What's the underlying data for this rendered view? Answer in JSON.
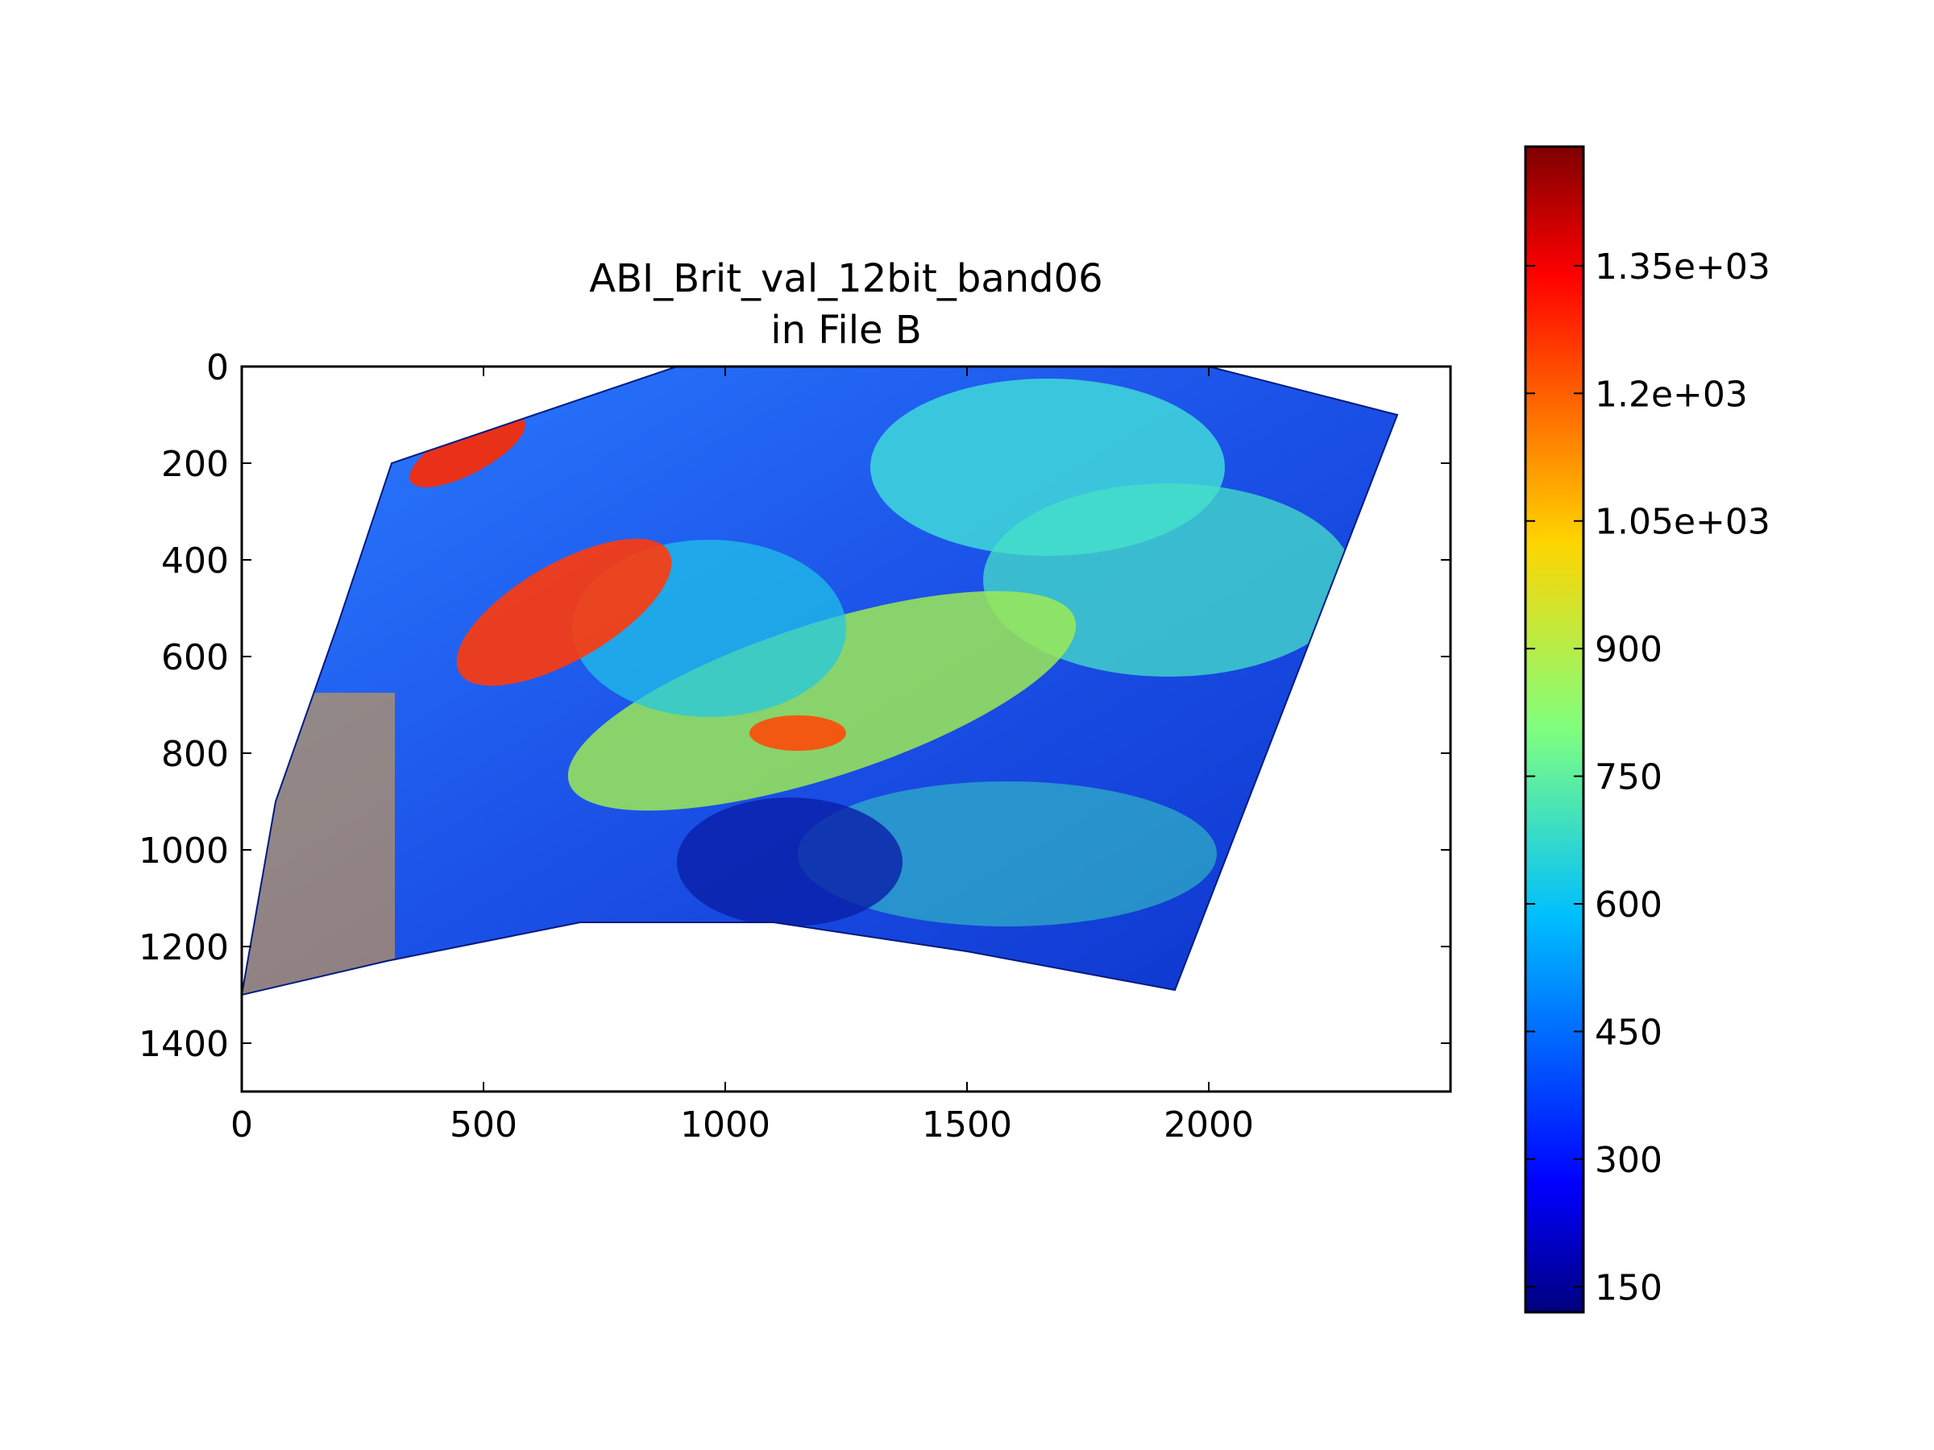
{
  "chart_data": {
    "type": "heatmap",
    "title_line1": "ABI_Brit_val_12bit_band06",
    "title_line2": "in File B",
    "xlabel": "",
    "ylabel": "",
    "xlim": [
      0,
      2500
    ],
    "ylim": [
      1500,
      0
    ],
    "x_ticks": [
      0,
      500,
      1000,
      1500,
      2000
    ],
    "x_tick_labels": [
      "0",
      "500",
      "1000",
      "1500",
      "2000"
    ],
    "y_ticks": [
      0,
      200,
      400,
      600,
      800,
      1000,
      1200,
      1400
    ],
    "y_tick_labels": [
      "0",
      "200",
      "400",
      "600",
      "800",
      "1000",
      "1200",
      "1400"
    ],
    "colormap": "jet",
    "colorbar": {
      "vmin": 120,
      "vmax": 1490,
      "ticks": [
        150,
        300,
        450,
        600,
        750,
        900,
        1050,
        1200,
        1350
      ],
      "tick_labels": [
        "150",
        "300",
        "450",
        "600",
        "750",
        "900",
        "1.05e+03",
        "1.2e+03",
        "1.35e+03"
      ]
    },
    "data_extent_outline": [
      [
        0,
        1300
      ],
      [
        70,
        900
      ],
      [
        200,
        530
      ],
      [
        310,
        200
      ],
      [
        900,
        0
      ],
      [
        2000,
        0
      ],
      [
        2390,
        100
      ],
      [
        1930,
        1290
      ],
      [
        1500,
        1210
      ],
      [
        1100,
        1150
      ],
      [
        700,
        1150
      ],
      [
        300,
        1230
      ],
      [
        0,
        1300
      ]
    ]
  }
}
